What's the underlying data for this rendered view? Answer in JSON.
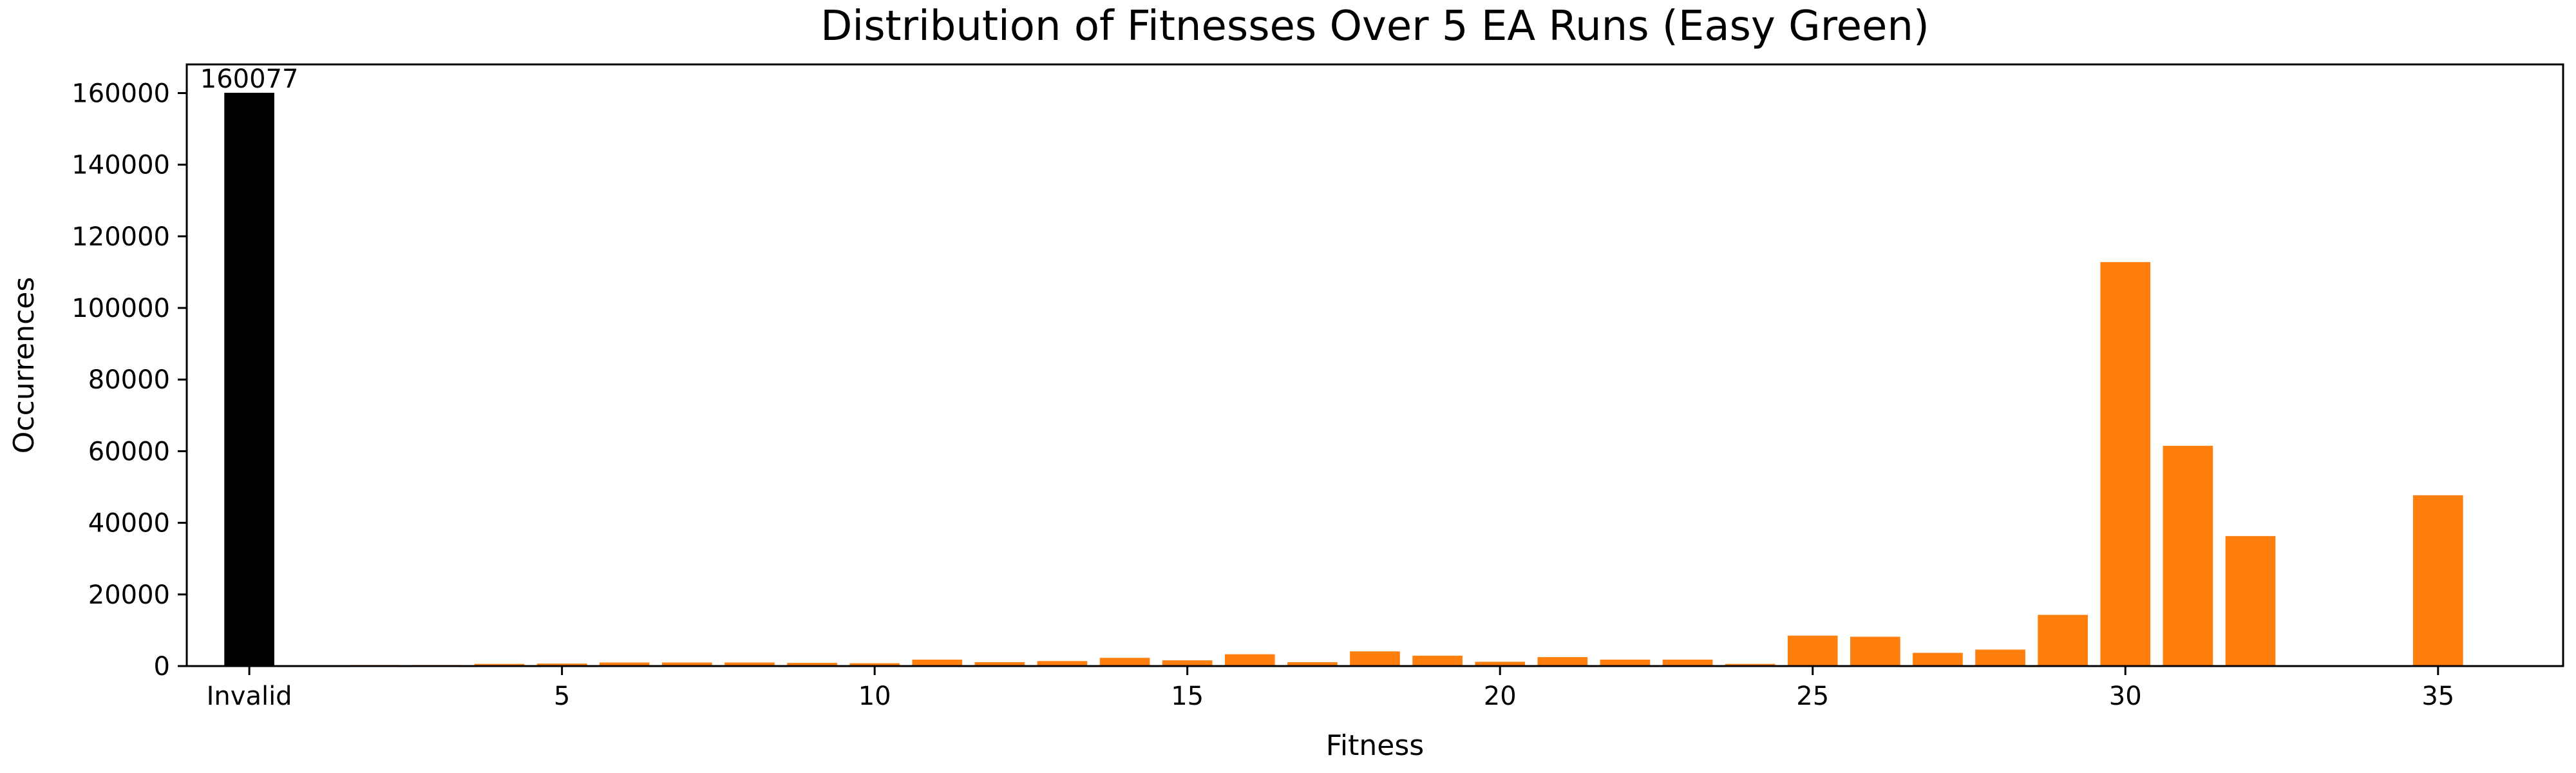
{
  "chart_data": {
    "type": "bar",
    "title": "Distribution of Fitnesses Over 5 EA Runs (Easy Green)",
    "xlabel": "Fitness",
    "ylabel": "Occurrences",
    "xlim": [
      -1,
      37
    ],
    "ylim": [
      0,
      168000
    ],
    "grid": false,
    "x_tick_labels": [
      {
        "pos": 0,
        "label": "Invalid"
      },
      {
        "pos": 5,
        "label": "5"
      },
      {
        "pos": 10,
        "label": "10"
      },
      {
        "pos": 15,
        "label": "15"
      },
      {
        "pos": 20,
        "label": "20"
      },
      {
        "pos": 25,
        "label": "25"
      },
      {
        "pos": 30,
        "label": "30"
      },
      {
        "pos": 35,
        "label": "35"
      }
    ],
    "y_ticks": [
      0,
      20000,
      40000,
      60000,
      80000,
      100000,
      120000,
      140000,
      160000
    ],
    "colors": {
      "invalid": "#000000",
      "valid": "#ff7f0e"
    },
    "invalid_bar": {
      "label": "Invalid",
      "value": 160077,
      "data_label": "160077"
    },
    "bars": [
      {
        "x": 1,
        "value": 200
      },
      {
        "x": 2,
        "value": 300
      },
      {
        "x": 3,
        "value": 300
      },
      {
        "x": 4,
        "value": 600
      },
      {
        "x": 5,
        "value": 700
      },
      {
        "x": 6,
        "value": 1000
      },
      {
        "x": 7,
        "value": 1000
      },
      {
        "x": 8,
        "value": 1000
      },
      {
        "x": 9,
        "value": 900
      },
      {
        "x": 10,
        "value": 800
      },
      {
        "x": 11,
        "value": 1800
      },
      {
        "x": 12,
        "value": 1100
      },
      {
        "x": 13,
        "value": 1400
      },
      {
        "x": 14,
        "value": 2300
      },
      {
        "x": 15,
        "value": 1600
      },
      {
        "x": 16,
        "value": 3300
      },
      {
        "x": 17,
        "value": 1100
      },
      {
        "x": 18,
        "value": 4100
      },
      {
        "x": 19,
        "value": 2900
      },
      {
        "x": 20,
        "value": 1200
      },
      {
        "x": 21,
        "value": 2500
      },
      {
        "x": 22,
        "value": 1800
      },
      {
        "x": 23,
        "value": 1800
      },
      {
        "x": 24,
        "value": 600
      },
      {
        "x": 25,
        "value": 8500
      },
      {
        "x": 26,
        "value": 8200
      },
      {
        "x": 27,
        "value": 3700
      },
      {
        "x": 28,
        "value": 4600
      },
      {
        "x": 29,
        "value": 14300
      },
      {
        "x": 30,
        "value": 112800
      },
      {
        "x": 31,
        "value": 61500
      },
      {
        "x": 32,
        "value": 36300
      },
      {
        "x": 35,
        "value": 47700
      }
    ]
  }
}
